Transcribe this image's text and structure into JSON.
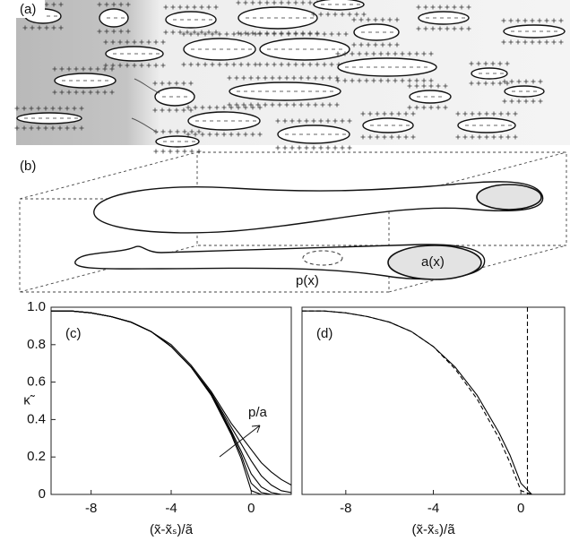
{
  "illustrations": {
    "panel_a": {
      "label": "(a)"
    },
    "panel_b": {
      "label": "(b)",
      "area_label": "a(x)",
      "perimeter_label": "p(x)"
    }
  },
  "chart_data": [
    {
      "type": "line",
      "panel_label": "(c)",
      "y_label": "κ̃",
      "x_label": "(x̃-x̃ₛ)/ã",
      "annotation": "p/a",
      "xlim": [
        -10,
        2
      ],
      "xticks": [
        -8,
        -4,
        0
      ],
      "ylim": [
        0,
        1
      ],
      "yticks": [
        0,
        0.2,
        0.4,
        0.6,
        0.8,
        {
          "value": 1,
          "label": "1.0"
        }
      ],
      "grid": false,
      "series": [
        {
          "color": "#000",
          "dash": false,
          "x": [
            -10,
            -9,
            -8,
            -7,
            -6,
            -5,
            -4,
            -3,
            -2,
            -1,
            -0.5,
            0,
            0.5,
            1,
            1.5,
            2
          ],
          "values": [
            0.98,
            0.98,
            0.97,
            0.95,
            0.92,
            0.87,
            0.79,
            0.68,
            0.53,
            0.32,
            0.19,
            0.02,
            0,
            0,
            0,
            0
          ]
        },
        {
          "color": "#000",
          "dash": false,
          "x": [
            -10,
            -9,
            -8,
            -7,
            -6,
            -5,
            -4,
            -3,
            -2,
            -1,
            -0.5,
            0,
            0.5,
            1,
            1.5,
            2
          ],
          "values": [
            0.98,
            0.98,
            0.97,
            0.95,
            0.92,
            0.87,
            0.79,
            0.68,
            0.53,
            0.33,
            0.21,
            0.06,
            0.01,
            0,
            0,
            0
          ]
        },
        {
          "color": "#000",
          "dash": false,
          "x": [
            -10,
            -9,
            -8,
            -7,
            -6,
            -5,
            -4,
            -3,
            -2,
            -1,
            -0.5,
            0,
            0.5,
            1,
            1.5,
            2
          ],
          "values": [
            0.98,
            0.98,
            0.97,
            0.95,
            0.92,
            0.87,
            0.79,
            0.68,
            0.54,
            0.34,
            0.23,
            0.11,
            0.04,
            0.01,
            0,
            0
          ]
        },
        {
          "color": "#000",
          "dash": false,
          "x": [
            -10,
            -9,
            -8,
            -7,
            -6,
            -5,
            -4,
            -3,
            -2,
            -1,
            -0.5,
            0,
            0.5,
            1,
            1.5,
            2
          ],
          "values": [
            0.98,
            0.98,
            0.97,
            0.95,
            0.92,
            0.87,
            0.79,
            0.68,
            0.54,
            0.36,
            0.27,
            0.18,
            0.1,
            0.05,
            0.02,
            0.01
          ]
        },
        {
          "color": "#000",
          "dash": false,
          "x": [
            -10,
            -9,
            -8,
            -7,
            -6,
            -5,
            -4,
            -3,
            -2,
            -1,
            -0.5,
            0,
            0.5,
            1,
            1.5,
            2
          ],
          "values": [
            0.98,
            0.98,
            0.97,
            0.95,
            0.92,
            0.87,
            0.8,
            0.69,
            0.55,
            0.38,
            0.31,
            0.24,
            0.17,
            0.12,
            0.08,
            0.05
          ]
        }
      ]
    },
    {
      "type": "line",
      "panel_label": "(d)",
      "x_label": "(x̃-x̃ₛ)/ã",
      "xlim": [
        -10,
        2
      ],
      "xticks": [
        -8,
        -4,
        0
      ],
      "ylim": [
        0,
        1
      ],
      "grid": false,
      "series": [
        {
          "color": "#000",
          "dash": false,
          "x": [
            -10,
            -9,
            -8,
            -7,
            -6,
            -5,
            -4,
            -3,
            -2,
            -1,
            -0.5,
            0,
            0.5,
            1,
            1.5,
            2
          ],
          "values": [
            0.98,
            0.98,
            0.97,
            0.95,
            0.92,
            0.87,
            0.79,
            0.68,
            0.53,
            0.33,
            0.21,
            0.06,
            0,
            0,
            0,
            0
          ]
        },
        {
          "color": "#000",
          "dash": true,
          "x": [
            -10,
            -9,
            -8,
            -7,
            -6,
            -5,
            -4,
            -3,
            -2,
            -1,
            -0.5,
            0,
            0.5,
            1,
            1.5,
            2
          ],
          "values": [
            0.98,
            0.98,
            0.97,
            0.95,
            0.92,
            0.87,
            0.79,
            0.67,
            0.51,
            0.3,
            0.17,
            0.02,
            0,
            0,
            0,
            0
          ]
        },
        {
          "color": "#000",
          "dash": true,
          "x": [
            0.3,
            0.3
          ],
          "values": [
            1,
            0
          ]
        }
      ]
    }
  ]
}
